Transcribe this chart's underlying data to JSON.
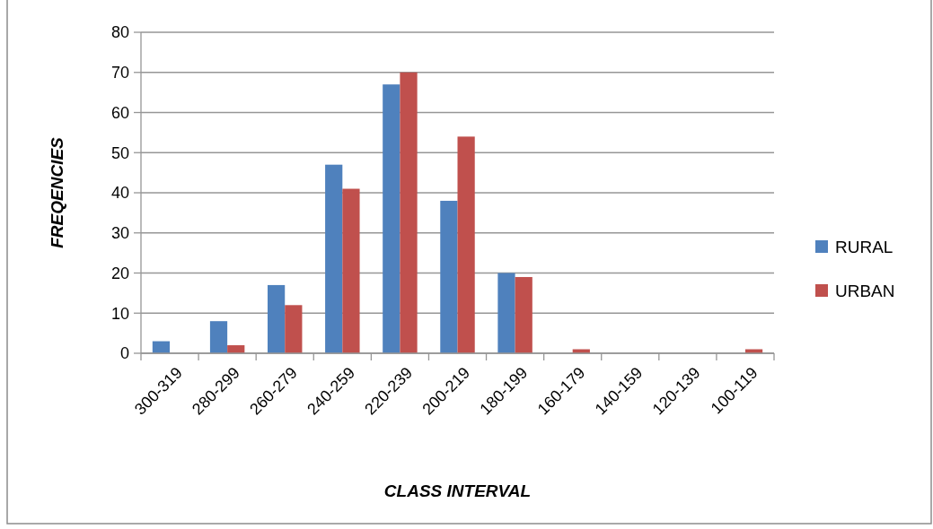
{
  "chart_data": {
    "type": "bar",
    "xlabel": "CLASS INTERVAL",
    "ylabel": "FREQENCIES",
    "categories": [
      "300-319",
      "280-299",
      "260-279",
      "240-259",
      "220-239",
      "200-219",
      "180-199",
      "160-179",
      "140-159",
      "120-139",
      "100-119"
    ],
    "series": [
      {
        "name": "RURAL",
        "color": "#4f81bd",
        "values": [
          3,
          8,
          17,
          47,
          67,
          38,
          20,
          0,
          0,
          0,
          0
        ]
      },
      {
        "name": "URBAN",
        "color": "#c0504d",
        "values": [
          0,
          2,
          12,
          41,
          70,
          54,
          19,
          1,
          0,
          0,
          1
        ]
      }
    ],
    "ylim": [
      0,
      80
    ],
    "yticks": [
      0,
      10,
      20,
      30,
      40,
      50,
      60,
      70,
      80
    ],
    "grid": "y",
    "legend": "right"
  }
}
